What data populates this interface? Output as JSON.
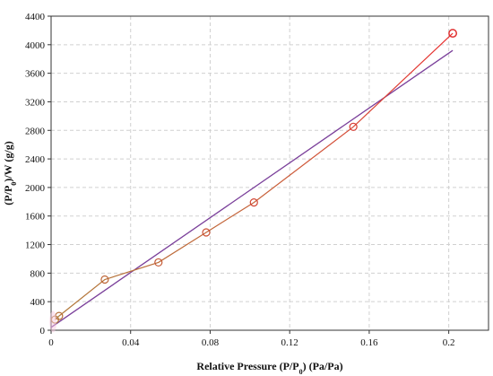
{
  "chart_data": {
    "type": "scatter",
    "xlabel": "Relative Pressure (P/P",
    "xlabel_sub": "0",
    "xlabel_tail": ") (Pa/Pa)",
    "ylabel": "(P/P",
    "ylabel_sub": "0",
    "ylabel_tail": ")/W (g/g)",
    "xlim": [
      0,
      0.22
    ],
    "ylim": [
      0,
      4400
    ],
    "x_ticks": [
      0,
      0.04,
      0.08,
      0.12,
      0.16,
      0.2
    ],
    "x_tick_labels": [
      "0",
      "0.04",
      "0.08",
      "0.12",
      "0.16",
      "0.2"
    ],
    "y_ticks": [
      0,
      400,
      800,
      1200,
      1600,
      2000,
      2400,
      2800,
      3200,
      3600,
      4000,
      4400
    ],
    "y_tick_labels": [
      "0",
      "400",
      "800",
      "1200",
      "1600",
      "2000",
      "2400",
      "2800",
      "3200",
      "3600",
      "4000",
      "4400"
    ],
    "grid": true,
    "series": [
      {
        "kind": "measured",
        "marker": "open-circle",
        "x": [
          0.002,
          0.004,
          0.027,
          0.054,
          0.078,
          0.102,
          0.152,
          0.202
        ],
        "y": [
          150,
          200,
          710,
          950,
          1370,
          1790,
          2850,
          4160
        ]
      },
      {
        "kind": "linear-fit",
        "color": "#7a3f9a",
        "x": [
          0,
          0.202
        ],
        "y": [
          40,
          3920
        ]
      }
    ],
    "colors": {
      "marker_start": "#b07a3a",
      "marker_end": "#e03030",
      "line_start": "#b07a3a",
      "line_end": "#e83030",
      "fit": "#7a3f9a",
      "grid": "#d0d0d0",
      "frame": "#333333"
    }
  }
}
